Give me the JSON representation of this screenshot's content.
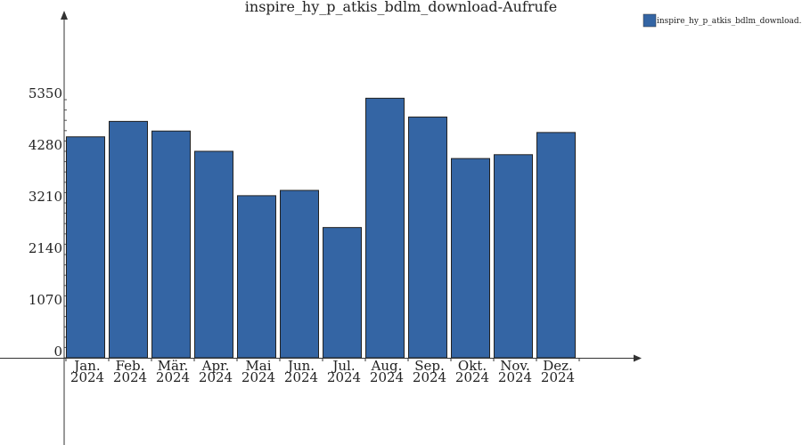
{
  "chart_data": {
    "type": "bar",
    "title": "inspire_hy_p_atkis_bdlm_download-Aufrufe",
    "categories": [
      [
        "Jan.",
        "2024"
      ],
      [
        "Feb.",
        "2024"
      ],
      [
        "Mär.",
        "2024"
      ],
      [
        "Apr.",
        "2024"
      ],
      [
        "Mai",
        "2024"
      ],
      [
        "Jun.",
        "2024"
      ],
      [
        "Jul.",
        "2024"
      ],
      [
        "Aug.",
        "2024"
      ],
      [
        "Sep.",
        "2024"
      ],
      [
        "Okt.",
        "2024"
      ],
      [
        "Nov.",
        "2024"
      ],
      [
        "Dez.",
        "2024"
      ]
    ],
    "series": [
      {
        "name": "inspire_hy_p_atkis_bdlm_download...",
        "color": "#3465a4",
        "values": [
          4580,
          4900,
          4700,
          4280,
          3360,
          3470,
          2700,
          5380,
          4990,
          4130,
          4210,
          4670
        ]
      }
    ],
    "yticks": [
      "0",
      "1070",
      "2140",
      "3210",
      "4280",
      "5350"
    ],
    "ytick_values": [
      0,
      1070,
      2140,
      3210,
      4280,
      5350
    ],
    "ylim": [
      0,
      7250
    ],
    "xlabel": "",
    "ylabel": "",
    "legend_position": "top-right",
    "grid": false
  }
}
